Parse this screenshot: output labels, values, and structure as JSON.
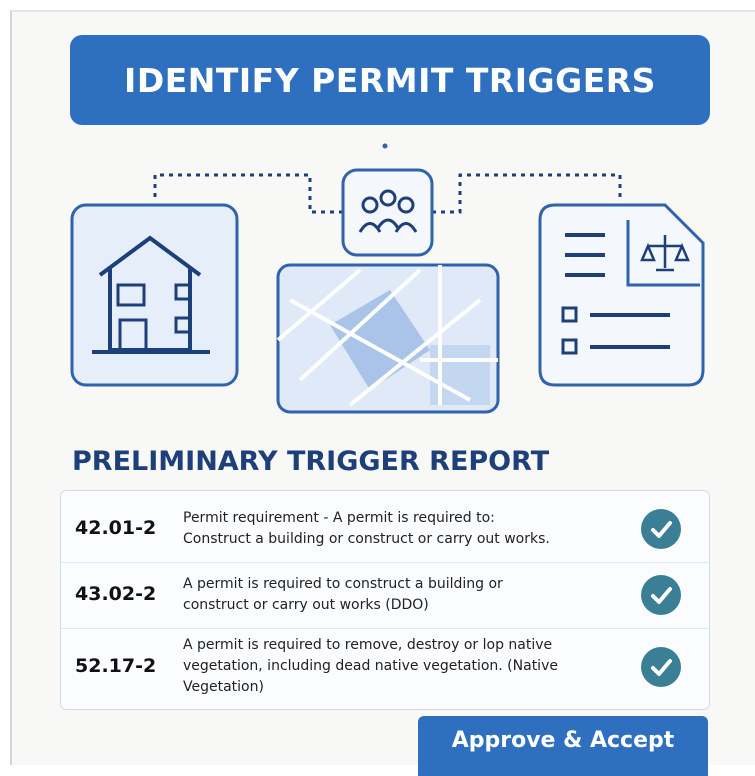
{
  "header": {
    "title": "IDENTIFY PERMIT TRIGGERS"
  },
  "report": {
    "heading": "PRELIMINARY TRIGGER REPORT",
    "rows": [
      {
        "code": "42.01-2",
        "lines": [
          "Permit requirement - A permit is required to:",
          "Construct a building or construct or carry out works."
        ]
      },
      {
        "code": "43.02-2",
        "lines": [
          "A permit is required to construct a building or",
          "construct or carry out works (DDO)"
        ]
      },
      {
        "code": "52.17-2",
        "lines": [
          "A permit is required to remove, destroy or lop native",
          "vegetation, including dead native vegetation. (Native",
          "Vegetation)"
        ]
      }
    ]
  },
  "button": {
    "label": "Approve & Accept"
  }
}
